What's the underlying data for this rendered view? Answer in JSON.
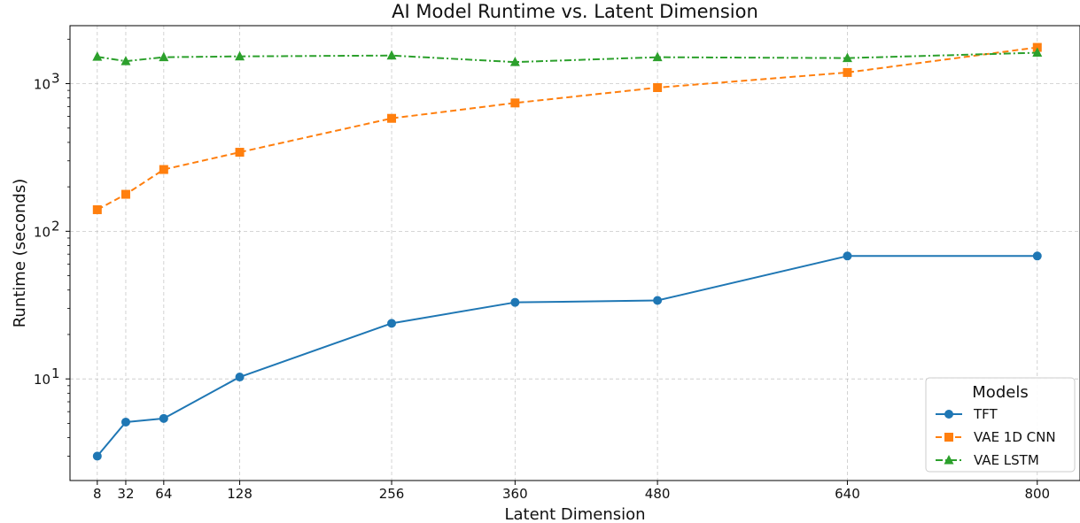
{
  "chart_data": {
    "type": "line",
    "title": "AI Model Runtime vs. Latent Dimension",
    "xlabel": "Latent Dimension",
    "ylabel": "Runtime (seconds)",
    "x": [
      8,
      32,
      64,
      128,
      256,
      360,
      480,
      640,
      800
    ],
    "xlim": [
      -15,
      836
    ],
    "ylim": [
      2.05,
      2470
    ],
    "yscale": "log",
    "y_ticks": [
      {
        "value": 10,
        "label": "10"
      },
      {
        "value": 100,
        "label": "10"
      },
      {
        "value": 1000,
        "label": "10"
      }
    ],
    "y_tick_exponents": [
      "1",
      "2",
      "3"
    ],
    "grid": true,
    "legend": {
      "title": "Models",
      "position": "lower-right"
    },
    "series": [
      {
        "name": "TFT",
        "color": "#1f77b4",
        "linestyle": "solid",
        "marker": "circle",
        "values": [
          3.0,
          5.1,
          5.4,
          10.3,
          23.8,
          33.0,
          34.0,
          68.0,
          68.0
        ]
      },
      {
        "name": "VAE 1D CNN",
        "color": "#ff7f0e",
        "linestyle": "dashed",
        "marker": "square",
        "values": [
          140,
          178,
          262,
          343,
          582,
          740,
          940,
          1190,
          1760
        ]
      },
      {
        "name": "VAE LSTM",
        "color": "#2ca02c",
        "linestyle": "dashdot",
        "marker": "triangle",
        "values": [
          1520,
          1420,
          1510,
          1530,
          1550,
          1400,
          1510,
          1490,
          1620
        ]
      }
    ]
  }
}
